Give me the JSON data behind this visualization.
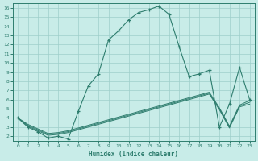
{
  "line1_x": [
    0,
    1,
    2,
    3,
    4,
    5,
    6,
    7,
    8,
    9,
    10,
    11,
    12,
    13,
    14,
    15,
    16,
    17,
    18,
    19,
    20,
    21,
    22,
    23
  ],
  "line1_y": [
    4.0,
    3.0,
    2.5,
    1.8,
    2.0,
    1.7,
    4.7,
    7.5,
    8.8,
    12.5,
    13.5,
    14.7,
    15.5,
    15.8,
    16.2,
    15.3,
    11.8,
    8.5,
    8.8,
    9.2,
    3.0,
    5.5,
    9.5,
    6.0
  ],
  "line2_x": [
    0,
    1,
    2,
    3,
    4,
    5,
    6,
    7,
    8,
    9,
    10,
    11,
    12,
    13,
    14,
    15,
    16,
    17,
    18,
    19,
    20,
    21,
    22,
    23
  ],
  "line2_y": [
    4.0,
    3.2,
    2.7,
    2.2,
    2.3,
    2.5,
    2.8,
    3.1,
    3.4,
    3.7,
    4.0,
    4.3,
    4.6,
    4.9,
    5.2,
    5.5,
    5.8,
    6.1,
    6.4,
    6.7,
    5.0,
    3.0,
    5.3,
    5.7
  ],
  "line3_x": [
    0,
    1,
    2,
    3,
    4,
    5,
    6,
    7,
    8,
    9,
    10,
    11,
    12,
    13,
    14,
    15,
    16,
    17,
    18,
    19,
    20,
    21,
    22,
    23
  ],
  "line3_y": [
    4.0,
    3.3,
    2.8,
    2.3,
    2.4,
    2.6,
    2.9,
    3.2,
    3.5,
    3.8,
    4.1,
    4.4,
    4.7,
    5.0,
    5.3,
    5.6,
    5.9,
    6.2,
    6.5,
    6.8,
    5.1,
    3.1,
    5.4,
    5.9
  ],
  "line4_x": [
    0,
    1,
    2,
    3,
    4,
    5,
    6,
    7,
    8,
    9,
    10,
    11,
    12,
    13,
    14,
    15,
    16,
    17,
    18,
    19,
    20,
    21,
    22,
    23
  ],
  "line4_y": [
    4.0,
    3.1,
    2.6,
    2.1,
    2.2,
    2.4,
    2.7,
    3.0,
    3.3,
    3.6,
    3.9,
    4.2,
    4.5,
    4.8,
    5.1,
    5.4,
    5.7,
    6.0,
    6.3,
    6.6,
    4.9,
    2.9,
    5.2,
    5.5
  ],
  "color": "#2e7d6e",
  "bg_color": "#c8ece8",
  "grid_color": "#9ecfca",
  "xlabel": "Humidex (Indice chaleur)",
  "xlim": [
    -0.5,
    23.5
  ],
  "ylim": [
    1.5,
    16.5
  ],
  "xticks": [
    0,
    1,
    2,
    3,
    4,
    5,
    6,
    7,
    8,
    9,
    10,
    11,
    12,
    13,
    14,
    15,
    16,
    17,
    18,
    19,
    20,
    21,
    22,
    23
  ],
  "yticks": [
    2,
    3,
    4,
    5,
    6,
    7,
    8,
    9,
    10,
    11,
    12,
    13,
    14,
    15,
    16
  ]
}
